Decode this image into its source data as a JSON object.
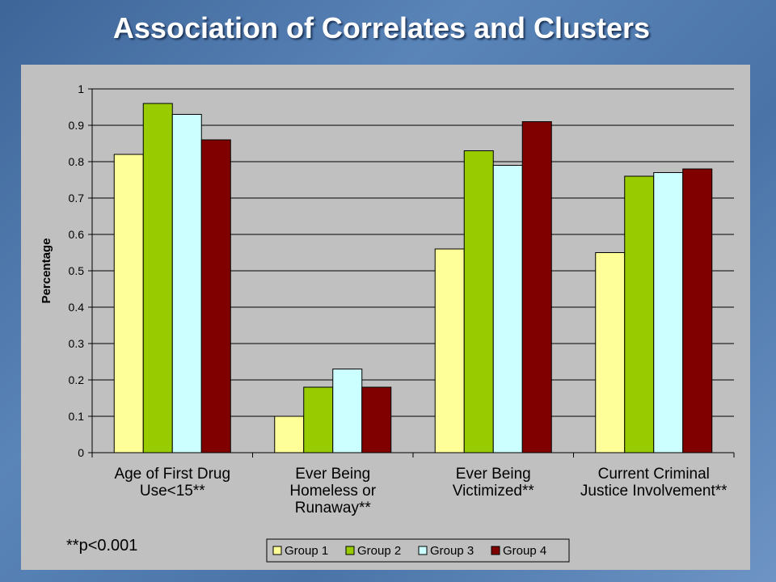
{
  "slide": {
    "title": "Association of Correlates and Clusters",
    "footnote": "**p<0.001"
  },
  "chart_data": {
    "type": "bar",
    "title": "",
    "xlabel": "",
    "ylabel": "Percentage",
    "ylim": [
      0,
      1
    ],
    "yticks": [
      "0",
      "0.1",
      "0.2",
      "0.3",
      "0.4",
      "0.5",
      "0.6",
      "0.7",
      "0.8",
      "0.9",
      "1"
    ],
    "grid": true,
    "legend_position": "bottom",
    "categories": [
      [
        "Age of First Drug",
        "Use<15**"
      ],
      [
        "Ever Being",
        "Homeless or",
        "Runaway**"
      ],
      [
        "Ever Being",
        "Victimized**"
      ],
      [
        "Current Criminal",
        "Justice Involvement**"
      ]
    ],
    "series": [
      {
        "name": "Group 1",
        "color": "#ffff99",
        "values": [
          0.82,
          0.1,
          0.56,
          0.55
        ]
      },
      {
        "name": "Group 2",
        "color": "#99cc00",
        "values": [
          0.96,
          0.18,
          0.83,
          0.76
        ]
      },
      {
        "name": "Group 3",
        "color": "#ccffff",
        "values": [
          0.93,
          0.23,
          0.79,
          0.77
        ]
      },
      {
        "name": "Group 4",
        "color": "#800000",
        "values": [
          0.86,
          0.18,
          0.91,
          0.78
        ]
      }
    ]
  }
}
